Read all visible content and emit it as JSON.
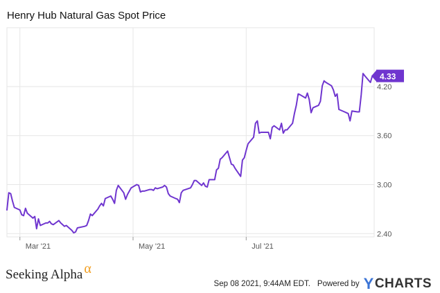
{
  "title": "Henry Hub Natural Gas Spot Price",
  "brand": {
    "name": "Seeking Alpha",
    "symbol": "α"
  },
  "footer": {
    "timestamp": "Sep 08 2021, 9:44AM EDT.",
    "powered_by": "Powered by",
    "provider": "CHARTS",
    "provider_initial": "Y"
  },
  "colors": {
    "line": "#6f35cf",
    "badge": "#6f35cf",
    "grid": "#e6e6e6",
    "axis": "#555555",
    "brand_alpha": "#f29e1f",
    "provider_initial": "#3b74d6"
  },
  "chart_data": {
    "type": "line",
    "title": "Henry Hub Natural Gas Spot Price",
    "x_unit": "date",
    "x_ticks": [
      "Mar '21",
      "May '21",
      "Jul '21"
    ],
    "x_tick_values": [
      "2021-03-01",
      "2021-05-01",
      "2021-07-01"
    ],
    "xlim": [
      "2021-02-22",
      "2021-09-08"
    ],
    "y_ticks": [
      2.4,
      3.0,
      3.6,
      4.2
    ],
    "y_tick_labels": [
      "2.40",
      "3.00",
      "3.60",
      "4.20"
    ],
    "ylim": [
      2.36,
      4.92
    ],
    "grid": true,
    "last_value_label": "4.33",
    "series": [
      {
        "values": [
          [
            "2021-02-22",
            2.69
          ],
          [
            "2021-02-23",
            2.9
          ],
          [
            "2021-02-24",
            2.89
          ],
          [
            "2021-02-25",
            2.8
          ],
          [
            "2021-02-26",
            2.72
          ],
          [
            "2021-03-01",
            2.69
          ],
          [
            "2021-03-02",
            2.63
          ],
          [
            "2021-03-03",
            2.62
          ],
          [
            "2021-03-04",
            2.71
          ],
          [
            "2021-03-05",
            2.65
          ],
          [
            "2021-03-08",
            2.59
          ],
          [
            "2021-03-09",
            2.61
          ],
          [
            "2021-03-10",
            2.46
          ],
          [
            "2021-03-11",
            2.58
          ],
          [
            "2021-03-12",
            2.5
          ],
          [
            "2021-03-15",
            2.53
          ],
          [
            "2021-03-16",
            2.53
          ],
          [
            "2021-03-17",
            2.55
          ],
          [
            "2021-03-18",
            2.52
          ],
          [
            "2021-03-19",
            2.51
          ],
          [
            "2021-03-22",
            2.56
          ],
          [
            "2021-03-23",
            2.53
          ],
          [
            "2021-03-24",
            2.51
          ],
          [
            "2021-03-25",
            2.49
          ],
          [
            "2021-03-26",
            2.5
          ],
          [
            "2021-03-29",
            2.44
          ],
          [
            "2021-03-30",
            2.41
          ],
          [
            "2021-03-31",
            2.42
          ],
          [
            "2021-04-01",
            2.47
          ],
          [
            "2021-04-05",
            2.49
          ],
          [
            "2021-04-06",
            2.5
          ],
          [
            "2021-04-07",
            2.56
          ],
          [
            "2021-04-08",
            2.64
          ],
          [
            "2021-04-09",
            2.62
          ],
          [
            "2021-04-12",
            2.7
          ],
          [
            "2021-04-13",
            2.74
          ],
          [
            "2021-04-14",
            2.77
          ],
          [
            "2021-04-15",
            2.74
          ],
          [
            "2021-04-16",
            2.83
          ],
          [
            "2021-04-19",
            2.86
          ],
          [
            "2021-04-20",
            2.82
          ],
          [
            "2021-04-21",
            2.77
          ],
          [
            "2021-04-22",
            2.93
          ],
          [
            "2021-04-23",
            2.99
          ],
          [
            "2021-04-26",
            2.9
          ],
          [
            "2021-04-27",
            2.82
          ],
          [
            "2021-04-28",
            2.88
          ],
          [
            "2021-04-29",
            2.92
          ],
          [
            "2021-04-30",
            2.96
          ],
          [
            "2021-05-03",
            3.0
          ],
          [
            "2021-05-04",
            2.99
          ],
          [
            "2021-05-05",
            2.91
          ],
          [
            "2021-05-06",
            2.92
          ],
          [
            "2021-05-07",
            2.92
          ],
          [
            "2021-05-10",
            2.94
          ],
          [
            "2021-05-11",
            2.94
          ],
          [
            "2021-05-12",
            2.93
          ],
          [
            "2021-05-13",
            2.96
          ],
          [
            "2021-05-14",
            2.95
          ],
          [
            "2021-05-17",
            2.97
          ],
          [
            "2021-05-18",
            2.99
          ],
          [
            "2021-05-19",
            2.97
          ],
          [
            "2021-05-20",
            2.89
          ],
          [
            "2021-05-21",
            2.86
          ],
          [
            "2021-05-24",
            2.83
          ],
          [
            "2021-05-25",
            2.82
          ],
          [
            "2021-05-26",
            2.78
          ],
          [
            "2021-05-27",
            2.9
          ],
          [
            "2021-05-28",
            2.93
          ],
          [
            "2021-06-01",
            2.96
          ],
          [
            "2021-06-02",
            3.0
          ],
          [
            "2021-06-03",
            3.05
          ],
          [
            "2021-06-04",
            3.05
          ],
          [
            "2021-06-07",
            2.99
          ],
          [
            "2021-06-08",
            3.02
          ],
          [
            "2021-06-09",
            2.98
          ],
          [
            "2021-06-10",
            2.97
          ],
          [
            "2021-06-11",
            3.06
          ],
          [
            "2021-06-14",
            3.06
          ],
          [
            "2021-06-15",
            3.18
          ],
          [
            "2021-06-16",
            3.2
          ],
          [
            "2021-06-17",
            3.31
          ],
          [
            "2021-06-18",
            3.33
          ],
          [
            "2021-06-21",
            3.41
          ],
          [
            "2021-06-22",
            3.33
          ],
          [
            "2021-06-23",
            3.25
          ],
          [
            "2021-06-24",
            3.24
          ],
          [
            "2021-06-25",
            3.2
          ],
          [
            "2021-06-28",
            3.1
          ],
          [
            "2021-06-29",
            3.3
          ],
          [
            "2021-06-30",
            3.33
          ],
          [
            "2021-07-01",
            3.42
          ],
          [
            "2021-07-02",
            3.5
          ],
          [
            "2021-07-05",
            3.58
          ],
          [
            "2021-07-06",
            3.75
          ],
          [
            "2021-07-07",
            3.78
          ],
          [
            "2021-07-08",
            3.63
          ],
          [
            "2021-07-09",
            3.64
          ],
          [
            "2021-07-12",
            3.64
          ],
          [
            "2021-07-13",
            3.64
          ],
          [
            "2021-07-14",
            3.56
          ],
          [
            "2021-07-15",
            3.7
          ],
          [
            "2021-07-16",
            3.72
          ],
          [
            "2021-07-19",
            3.67
          ],
          [
            "2021-07-20",
            3.75
          ],
          [
            "2021-07-21",
            3.63
          ],
          [
            "2021-07-22",
            3.67
          ],
          [
            "2021-07-23",
            3.67
          ],
          [
            "2021-07-26",
            3.75
          ],
          [
            "2021-07-27",
            3.87
          ],
          [
            "2021-07-28",
            3.97
          ],
          [
            "2021-07-29",
            4.11
          ],
          [
            "2021-07-30",
            4.1
          ],
          [
            "2021-08-02",
            4.06
          ],
          [
            "2021-08-03",
            4.12
          ],
          [
            "2021-08-04",
            4.04
          ],
          [
            "2021-08-05",
            3.88
          ],
          [
            "2021-08-06",
            3.94
          ],
          [
            "2021-08-09",
            3.97
          ],
          [
            "2021-08-10",
            4.02
          ],
          [
            "2021-08-11",
            4.21
          ],
          [
            "2021-08-12",
            4.27
          ],
          [
            "2021-08-13",
            4.25
          ],
          [
            "2021-08-16",
            4.21
          ],
          [
            "2021-08-17",
            4.16
          ],
          [
            "2021-08-18",
            4.08
          ],
          [
            "2021-08-19",
            4.11
          ],
          [
            "2021-08-20",
            3.92
          ],
          [
            "2021-08-23",
            3.89
          ],
          [
            "2021-08-24",
            3.88
          ],
          [
            "2021-08-25",
            3.87
          ],
          [
            "2021-08-26",
            3.78
          ],
          [
            "2021-08-27",
            3.9
          ],
          [
            "2021-08-30",
            3.89
          ],
          [
            "2021-08-31",
            3.89
          ],
          [
            "2021-09-01",
            4.1
          ],
          [
            "2021-09-02",
            4.36
          ],
          [
            "2021-09-03",
            4.33
          ],
          [
            "2021-09-06",
            4.25
          ],
          [
            "2021-09-07",
            4.33
          ]
        ]
      }
    ]
  }
}
